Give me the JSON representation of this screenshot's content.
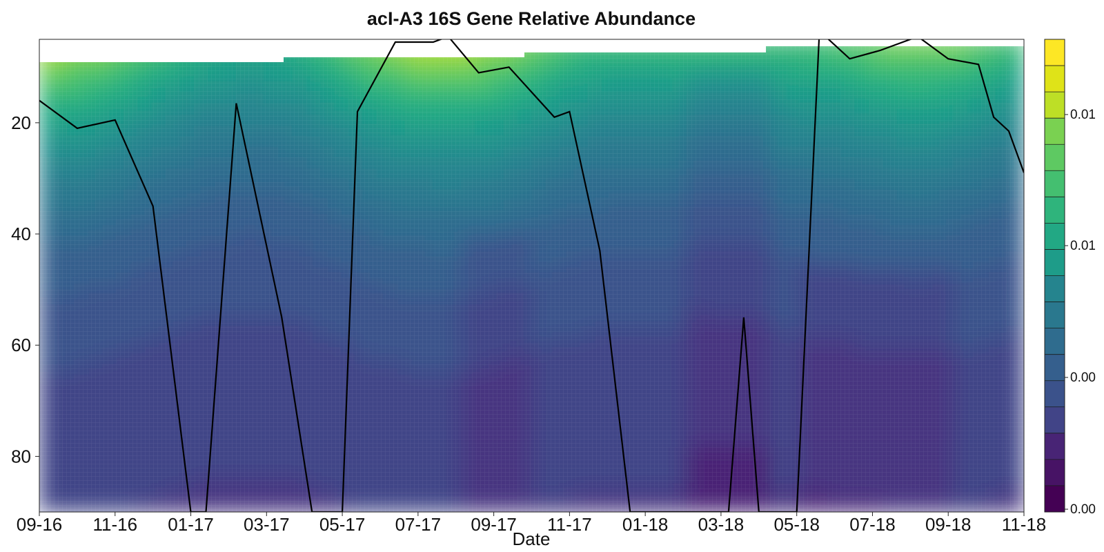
{
  "chart_data": {
    "type": "heatmap",
    "title": "acI-A3 16S Gene Relative Abundance",
    "xlabel": "Date",
    "ylabel": "",
    "x_tick_labels": [
      "09-16",
      "11-16",
      "01-17",
      "03-17",
      "05-17",
      "07-17",
      "09-17",
      "11-17",
      "01-18",
      "03-18",
      "05-18",
      "07-18",
      "09-18",
      "11-18"
    ],
    "y_ticks": [
      20,
      40,
      60,
      80
    ],
    "ylim": [
      90,
      5
    ],
    "y_inverted": true,
    "colorscale": "viridis",
    "colorbar_tick_labels": [
      "0.01",
      "0.01",
      "0.00",
      "0.00"
    ],
    "colorbar_levels": 18,
    "grid": false,
    "overlay_line": {
      "description": "",
      "points": [
        {
          "x": "09-16",
          "y": 16
        },
        {
          "x": "10-16",
          "y": 21
        },
        {
          "x": "11-16",
          "y": 19.5
        },
        {
          "x": "12-16",
          "y": 35
        },
        {
          "x": "12-16b",
          "y": 90
        },
        {
          "x": "01-17",
          "y": 90
        },
        {
          "x": "02-17",
          "y": 16.5
        },
        {
          "x": "03-17",
          "y": 55
        },
        {
          "x": "04-17",
          "y": 90
        },
        {
          "x": "04-17b",
          "y": 90
        },
        {
          "x": "05-17",
          "y": 18
        },
        {
          "x": "06-17",
          "y": 5.5
        },
        {
          "x": "07-17",
          "y": 5.5
        },
        {
          "x": "07-17b",
          "y": 4.5
        },
        {
          "x": "08-17",
          "y": 11
        },
        {
          "x": "09-17",
          "y": 10
        },
        {
          "x": "10-17",
          "y": 19
        },
        {
          "x": "11-17",
          "y": 18
        },
        {
          "x": "12-17",
          "y": 43
        },
        {
          "x": "12-17b",
          "y": 90
        },
        {
          "x": "03-18",
          "y": 90
        },
        {
          "x": "03-18b",
          "y": 55
        },
        {
          "x": "04-18",
          "y": 90
        },
        {
          "x": "05-18",
          "y": 90
        },
        {
          "x": "05-18b",
          "y": 3.5
        },
        {
          "x": "06-18",
          "y": 8.5
        },
        {
          "x": "07-18",
          "y": 7
        },
        {
          "x": "08-18",
          "y": 4.5
        },
        {
          "x": "09-18",
          "y": 8.5
        },
        {
          "x": "09-18b",
          "y": 9.5
        },
        {
          "x": "10-18",
          "y": 19
        },
        {
          "x": "10-18b",
          "y": 21.5
        },
        {
          "x": "11-18",
          "y": 29
        }
      ]
    }
  },
  "colors": {
    "viridis": [
      "#440154",
      "#471365",
      "#482475",
      "#463480",
      "#414487",
      "#3b528b",
      "#355f8d",
      "#2f6c8e",
      "#2a788e",
      "#25848e",
      "#21918c",
      "#1e9c89",
      "#22a884",
      "#2fb47c",
      "#44bf70",
      "#5ec962",
      "#7ad151",
      "#9bd93c",
      "#bddf26",
      "#dfe318",
      "#fde725"
    ],
    "line": "#000000"
  }
}
